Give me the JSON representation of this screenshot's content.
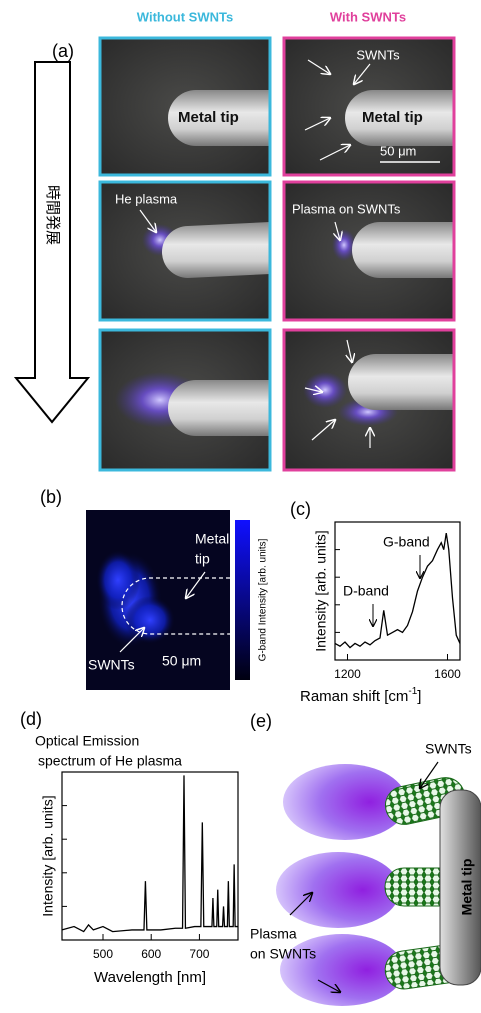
{
  "panels": {
    "a": {
      "label": "(a)",
      "column_left": "Without SWNTs",
      "column_right": "With SWNTs",
      "arrow_label": "時間発展",
      "labels": [
        "Metal tip",
        "SWNTs",
        "Metal tip",
        "50 μm",
        "He plasma",
        "Plasma on SWNTs"
      ]
    },
    "b": {
      "label": "(b)",
      "metal_tip": [
        "Metal",
        "tip"
      ],
      "swnts": "SWNTs",
      "scale": "50 μm",
      "colorbar_label": "G-band Intensity [arb. units]"
    },
    "e": {
      "label": "(e)",
      "swnts": "SWNTs",
      "plasma": [
        "Plasma",
        "on SWNTs"
      ],
      "metal_tip": "Metal tip"
    }
  },
  "chart_data": [
    {
      "type": "line",
      "label": "(c)",
      "ylabel": "Intensity [arb. units]",
      "xlabel": {
        "text": "Raman shift [cm",
        "sup": "-1",
        "tail": "]"
      },
      "annotations": [
        "G-band",
        "D-band"
      ],
      "x": [
        1150,
        1170,
        1190,
        1210,
        1230,
        1250,
        1270,
        1290,
        1310,
        1330,
        1345,
        1360,
        1380,
        1400,
        1420,
        1440,
        1460,
        1480,
        1500,
        1520,
        1540,
        1560,
        1575,
        1585,
        1595,
        1605,
        1620,
        1635,
        1650
      ],
      "series": [
        {
          "color": "#000000",
          "values": [
            0.12,
            0.1,
            0.13,
            0.09,
            0.12,
            0.1,
            0.13,
            0.11,
            0.14,
            0.16,
            0.36,
            0.18,
            0.2,
            0.22,
            0.2,
            0.25,
            0.35,
            0.5,
            0.6,
            0.68,
            0.72,
            0.8,
            0.85,
            0.8,
            0.92,
            0.8,
            0.45,
            0.18,
            0.12
          ]
        }
      ],
      "xlim": [
        1150,
        1650
      ],
      "ylim": [
        0,
        1
      ],
      "xticks": [
        1200,
        1600
      ]
    },
    {
      "type": "line",
      "label": "(d)",
      "title": [
        "Optical Emission",
        "spectrum of He plasma"
      ],
      "ylabel": "Intensity [arb. units]",
      "xlabel": "Wavelength [nm]",
      "x": [
        415,
        440,
        460,
        470,
        480,
        500,
        520,
        560,
        585,
        588,
        591,
        620,
        650,
        665,
        668,
        671,
        690,
        703,
        706,
        709,
        720,
        726,
        728,
        730,
        736,
        738,
        740,
        748,
        750,
        752,
        758,
        760,
        762,
        770,
        772,
        774,
        780
      ],
      "series": [
        {
          "color": "#000000",
          "values": [
            0.06,
            0.08,
            0.05,
            0.09,
            0.06,
            0.08,
            0.05,
            0.06,
            0.06,
            0.35,
            0.06,
            0.06,
            0.07,
            0.07,
            0.98,
            0.07,
            0.08,
            0.08,
            0.7,
            0.08,
            0.08,
            0.08,
            0.25,
            0.08,
            0.08,
            0.3,
            0.08,
            0.08,
            0.2,
            0.08,
            0.08,
            0.35,
            0.08,
            0.08,
            0.45,
            0.08,
            0.08
          ]
        }
      ],
      "xlim": [
        415,
        780
      ],
      "ylim": [
        0,
        1
      ],
      "xticks": [
        500,
        600,
        700
      ]
    }
  ]
}
